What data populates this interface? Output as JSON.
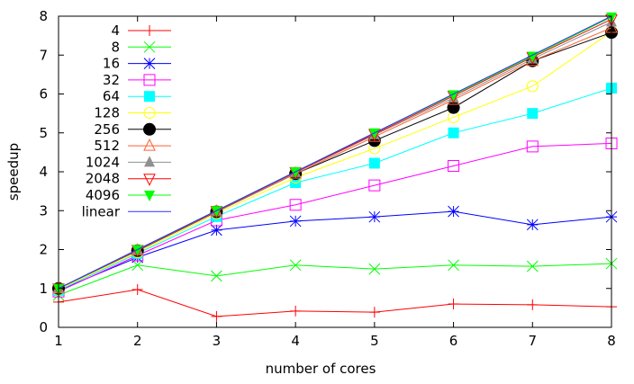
{
  "chart_data": {
    "type": "line",
    "xlabel": "number of cores",
    "ylabel": "speedup",
    "xlim": [
      1,
      8
    ],
    "ylim": [
      0,
      8
    ],
    "xticks": [
      1,
      2,
      3,
      4,
      5,
      6,
      7,
      8
    ],
    "yticks": [
      0,
      1,
      2,
      3,
      4,
      5,
      6,
      7,
      8
    ],
    "grid": false,
    "legend_position": "top-left",
    "x": [
      1,
      2,
      3,
      4,
      5,
      6,
      7,
      8
    ],
    "series": [
      {
        "name": "4",
        "color": "#ff0000",
        "marker": "plus",
        "values": [
          0.65,
          0.97,
          0.28,
          0.42,
          0.39,
          0.6,
          0.58,
          0.53
        ]
      },
      {
        "name": "8",
        "color": "#00ff00",
        "marker": "cross",
        "values": [
          0.83,
          1.6,
          1.32,
          1.6,
          1.5,
          1.6,
          1.57,
          1.64
        ]
      },
      {
        "name": "16",
        "color": "#0000ff",
        "marker": "star",
        "values": [
          0.95,
          1.8,
          2.5,
          2.73,
          2.84,
          2.98,
          2.64,
          2.84
        ]
      },
      {
        "name": "32",
        "color": "#ff00ff",
        "marker": "open-square",
        "values": [
          0.92,
          1.85,
          2.75,
          3.15,
          3.65,
          4.15,
          4.65,
          4.73
        ]
      },
      {
        "name": "64",
        "color": "#00ffff",
        "marker": "filled-square",
        "values": [
          0.95,
          1.9,
          2.85,
          3.72,
          4.22,
          5.0,
          5.5,
          6.15
        ]
      },
      {
        "name": "128",
        "color": "#ffff00",
        "marker": "open-circle",
        "values": [
          0.97,
          1.93,
          2.93,
          3.85,
          4.6,
          5.4,
          6.2,
          7.6
        ]
      },
      {
        "name": "256",
        "color": "#000000",
        "marker": "filled-circle",
        "values": [
          1.0,
          1.97,
          2.97,
          3.95,
          4.8,
          5.65,
          6.85,
          7.58
        ]
      },
      {
        "name": "512",
        "color": "#ff6030",
        "marker": "open-triangle",
        "values": [
          1.0,
          1.98,
          2.98,
          3.95,
          4.9,
          5.85,
          6.85,
          7.7
        ]
      },
      {
        "name": "1024",
        "color": "#909090",
        "marker": "filled-triangle",
        "values": [
          1.0,
          1.99,
          2.99,
          3.98,
          4.95,
          5.9,
          6.9,
          7.85
        ]
      },
      {
        "name": "2048",
        "color": "#ff0000",
        "marker": "open-inv-triangle",
        "values": [
          1.0,
          1.99,
          2.99,
          3.99,
          4.97,
          5.95,
          6.95,
          7.92
        ]
      },
      {
        "name": "4096",
        "color": "#00ff00",
        "marker": "filled-inv-triangle",
        "values": [
          1.0,
          2.0,
          3.0,
          4.0,
          5.0,
          5.98,
          6.97,
          7.98
        ]
      },
      {
        "name": "linear",
        "color": "#3030ff",
        "marker": "none",
        "values": [
          1,
          2,
          3,
          4,
          5,
          6,
          7,
          8
        ]
      }
    ]
  }
}
